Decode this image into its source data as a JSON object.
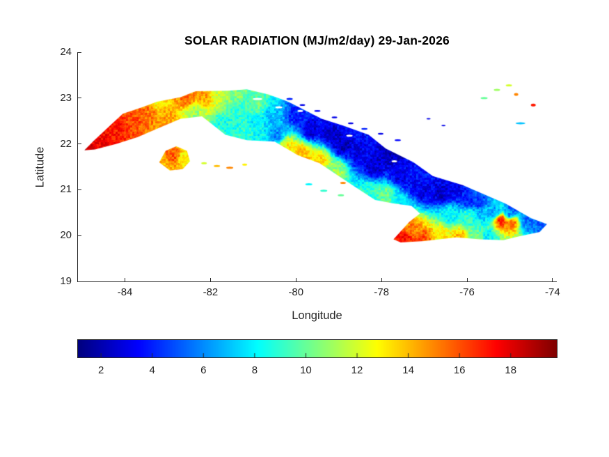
{
  "figure": {
    "background": "#ffffff",
    "axis_text_color": "#262626",
    "title_color": "#000000"
  },
  "chart_data": {
    "type": "heatmap",
    "title": "SOLAR RADIATION (MJ/m2/day) 29-Jan-2026",
    "xlabel": "Longitude",
    "ylabel": "Latitude",
    "region": "Cuba",
    "units": "MJ/m2/day",
    "xlim": [
      -85.1,
      -73.9
    ],
    "ylim": [
      19,
      24
    ],
    "xticks": [
      -84,
      -82,
      -80,
      -78,
      -76,
      -74
    ],
    "yticks": [
      19,
      20,
      21,
      22,
      23,
      24
    ],
    "grid": false,
    "colormap": "jet",
    "clim": [
      1.1,
      19.8
    ],
    "axis_color": "#262626",
    "colorbar": {
      "orientation": "horizontal",
      "position": "bottom",
      "ticks": [
        2,
        4,
        6,
        8,
        10,
        12,
        14,
        16,
        18
      ]
    },
    "coastline_outlines": {
      "main_island": [
        [
          -84.95,
          21.86
        ],
        [
          -84.75,
          22.05
        ],
        [
          -84.35,
          22.4
        ],
        [
          -84.05,
          22.66
        ],
        [
          -83.6,
          22.8
        ],
        [
          -83.25,
          22.92
        ],
        [
          -82.7,
          23.02
        ],
        [
          -82.35,
          23.15
        ],
        [
          -81.6,
          23.16
        ],
        [
          -81.15,
          23.19
        ],
        [
          -80.65,
          23.08
        ],
        [
          -80.2,
          22.93
        ],
        [
          -79.4,
          22.55
        ],
        [
          -78.9,
          22.4
        ],
        [
          -78.3,
          22.2
        ],
        [
          -77.9,
          21.9
        ],
        [
          -77.25,
          21.6
        ],
        [
          -76.8,
          21.3
        ],
        [
          -76.1,
          21.1
        ],
        [
          -75.6,
          20.9
        ],
        [
          -75.1,
          20.7
        ],
        [
          -74.5,
          20.38
        ],
        [
          -74.13,
          20.25
        ],
        [
          -74.3,
          20.08
        ],
        [
          -74.8,
          19.98
        ],
        [
          -75.15,
          19.9
        ],
        [
          -75.7,
          19.92
        ],
        [
          -76.25,
          19.96
        ],
        [
          -77.0,
          19.88
        ],
        [
          -77.55,
          19.85
        ],
        [
          -77.72,
          19.92
        ],
        [
          -77.35,
          20.3
        ],
        [
          -77.1,
          20.48
        ],
        [
          -77.3,
          20.65
        ],
        [
          -77.7,
          20.7
        ],
        [
          -78.15,
          20.78
        ],
        [
          -78.6,
          21.05
        ],
        [
          -79.0,
          21.3
        ],
        [
          -79.45,
          21.58
        ],
        [
          -79.95,
          21.75
        ],
        [
          -80.5,
          22.05
        ],
        [
          -81.15,
          22.08
        ],
        [
          -81.65,
          22.2
        ],
        [
          -82.2,
          22.6
        ],
        [
          -82.7,
          22.55
        ],
        [
          -83.2,
          22.35
        ],
        [
          -83.7,
          22.15
        ],
        [
          -84.2,
          22.0
        ],
        [
          -84.7,
          21.88
        ]
      ],
      "isla_de_la_juventud": [
        [
          -83.2,
          21.6
        ],
        [
          -83.05,
          21.85
        ],
        [
          -82.8,
          21.95
        ],
        [
          -82.55,
          21.85
        ],
        [
          -82.48,
          21.62
        ],
        [
          -82.65,
          21.45
        ],
        [
          -82.95,
          21.42
        ]
      ]
    },
    "samples_lon_lat_value": [
      [
        -84.95,
        21.87,
        18.5
      ],
      [
        -84.6,
        22.12,
        17.5
      ],
      [
        -84.2,
        22.35,
        17.0
      ],
      [
        -83.8,
        22.5,
        16.0
      ],
      [
        -83.45,
        22.7,
        15.5
      ],
      [
        -83.3,
        22.93,
        12.5
      ],
      [
        -83.0,
        22.45,
        14.5
      ],
      [
        -82.55,
        22.98,
        15.5
      ],
      [
        -82.15,
        23.05,
        14.5
      ],
      [
        -82.4,
        22.7,
        11.0
      ],
      [
        -81.85,
        23.08,
        12.0
      ],
      [
        -81.4,
        23.1,
        10.5
      ],
      [
        -81.3,
        22.75,
        9.0
      ],
      [
        -80.9,
        22.85,
        10.0
      ],
      [
        -80.95,
        22.45,
        8.0
      ],
      [
        -80.55,
        22.62,
        7.0
      ],
      [
        -80.45,
        22.2,
        6.0
      ],
      [
        -81.2,
        22.25,
        9.0
      ],
      [
        -80.8,
        22.12,
        8.0
      ],
      [
        -81.7,
        22.42,
        8.5
      ],
      [
        -80.0,
        22.62,
        4.0
      ],
      [
        -79.65,
        22.3,
        2.5
      ],
      [
        -79.2,
        22.2,
        2.5
      ],
      [
        -78.9,
        21.95,
        2.3
      ],
      [
        -78.5,
        21.75,
        3.0
      ],
      [
        -78.15,
        21.5,
        2.5
      ],
      [
        -77.75,
        21.78,
        2.0
      ],
      [
        -77.55,
        21.32,
        3.0
      ],
      [
        -77.25,
        21.1,
        3.5
      ],
      [
        -80.2,
        21.95,
        13.0
      ],
      [
        -79.85,
        21.8,
        14.0
      ],
      [
        -79.45,
        21.66,
        13.5
      ],
      [
        -79.05,
        21.42,
        11.0
      ],
      [
        -78.3,
        20.95,
        9.0
      ],
      [
        -77.9,
        20.88,
        10.0
      ],
      [
        -77.55,
        20.7,
        8.0
      ],
      [
        -77.3,
        20.2,
        15.0
      ],
      [
        -77.5,
        19.95,
        17.5
      ],
      [
        -77.05,
        19.95,
        16.0
      ],
      [
        -76.6,
        20.02,
        13.0
      ],
      [
        -76.2,
        19.98,
        14.0
      ],
      [
        -75.75,
        19.98,
        10.0
      ],
      [
        -75.5,
        19.97,
        8.0
      ],
      [
        -77.0,
        20.95,
        3.0
      ],
      [
        -76.6,
        20.92,
        2.5
      ],
      [
        -76.25,
        21.0,
        3.0
      ],
      [
        -76.0,
        20.78,
        4.0
      ],
      [
        -75.7,
        20.72,
        4.5
      ],
      [
        -75.35,
        20.5,
        6.5
      ],
      [
        -75.0,
        20.48,
        6.0
      ],
      [
        -74.6,
        20.32,
        5.5
      ],
      [
        -74.2,
        20.24,
        5.0
      ],
      [
        -74.9,
        20.62,
        4.5
      ],
      [
        -76.4,
        20.45,
        8.0
      ],
      [
        -76.0,
        20.42,
        9.0
      ],
      [
        -75.6,
        20.52,
        7.0
      ],
      [
        -75.2,
        20.33,
        17.0
      ],
      [
        -74.95,
        20.28,
        15.5
      ],
      [
        -82.9,
        21.72,
        16.0
      ],
      [
        -83.08,
        21.58,
        14.0
      ],
      [
        -82.6,
        21.68,
        13.0
      ]
    ],
    "cays_lon_lat_value_w_h": [
      [
        -80.15,
        22.98,
        4.0,
        9,
        3
      ],
      [
        -79.85,
        22.85,
        3.0,
        8,
        2.5
      ],
      [
        -79.5,
        22.72,
        3.5,
        9,
        2.5
      ],
      [
        -79.1,
        22.58,
        3.0,
        8,
        2.5
      ],
      [
        -78.72,
        22.45,
        3.0,
        8,
        2.5
      ],
      [
        -78.4,
        22.33,
        4.0,
        9,
        2.5
      ],
      [
        -78.02,
        22.22,
        3.0,
        8,
        2.5
      ],
      [
        -77.62,
        22.08,
        3.5,
        9,
        2.5
      ],
      [
        -76.9,
        22.55,
        3.0,
        6,
        2
      ],
      [
        -76.55,
        22.4,
        3.0,
        6,
        2
      ],
      [
        -82.15,
        21.58,
        12.0,
        8,
        3
      ],
      [
        -81.85,
        21.52,
        14.0,
        9,
        3
      ],
      [
        -81.55,
        21.48,
        15.0,
        10,
        3
      ],
      [
        -81.2,
        21.55,
        13.0,
        7,
        3
      ],
      [
        -79.7,
        21.12,
        8.0,
        10,
        3
      ],
      [
        -79.35,
        20.98,
        9.0,
        10,
        3
      ],
      [
        -78.95,
        20.88,
        10.0,
        9,
        3
      ],
      [
        -78.9,
        21.15,
        15.0,
        8,
        3
      ],
      [
        -75.6,
        23.0,
        10.0,
        10,
        3
      ],
      [
        -75.3,
        23.18,
        11.0,
        9,
        3
      ],
      [
        -75.02,
        23.28,
        12.0,
        9,
        3
      ],
      [
        -74.85,
        23.08,
        15.0,
        6,
        4
      ],
      [
        -74.45,
        22.85,
        17.0,
        7,
        4
      ],
      [
        -74.75,
        22.45,
        7.0,
        14,
        3
      ]
    ],
    "cloud_gaps_lon_lat_w_h": [
      [
        -80.9,
        22.98,
        14,
        3
      ],
      [
        -80.4,
        22.8,
        10,
        3
      ],
      [
        -79.9,
        22.72,
        8,
        3
      ],
      [
        -78.75,
        22.18,
        9,
        3
      ],
      [
        -77.7,
        21.62,
        8,
        3
      ]
    ]
  }
}
